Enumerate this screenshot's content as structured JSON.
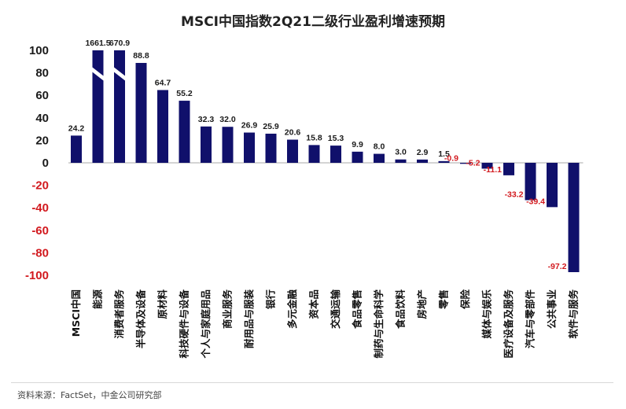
{
  "chart_data": {
    "type": "bar",
    "title": "MSCI中国指数2Q21二级行业盈利增速预期",
    "categories": [
      "MSCI中国",
      "能源",
      "消费者服务",
      "半导体及设备",
      "原材料",
      "科技硬件与设备",
      "个人与家庭用品",
      "商业服务",
      "耐用品与服装",
      "银行",
      "多元金融",
      "资本品",
      "交通运输",
      "食品零售",
      "制药与生命科学",
      "食品饮料",
      "房地产",
      "零售",
      "保险",
      "媒体与娱乐",
      "医疗设备及服务",
      "汽车与零部件",
      "公共事业",
      "软件与服务"
    ],
    "values": [
      24.2,
      1661.5,
      670.9,
      88.8,
      64.7,
      55.2,
      32.3,
      32.0,
      26.9,
      25.9,
      20.6,
      15.8,
      15.3,
      9.9,
      8.0,
      3.0,
      2.9,
      1.5,
      -0.9,
      -5.2,
      -11.1,
      -33.2,
      -39.4,
      -97.2
    ],
    "value_labels": [
      "24.2",
      "1661.5",
      "670.9",
      "88.8",
      "64.7",
      "55.2",
      "32.3",
      "32.0",
      "26.9",
      "25.9",
      "20.6",
      "15.8",
      "15.3",
      "9.9",
      "8.0",
      "3.0",
      "2.9",
      "1.5",
      "-0.9",
      "-5.2",
      "-11.1",
      "-33.2",
      "-39.4",
      "-97.2"
    ],
    "ylim": [
      -100,
      100
    ],
    "yticks": [
      100,
      80,
      60,
      40,
      20,
      0,
      -20,
      -40,
      -60,
      -80,
      -100
    ],
    "axis_break": true,
    "colors": {
      "bar": "#10106b",
      "positive_label": "#1a1a1a",
      "negative_label": "#d2191e",
      "negative_tick": "#d2191e",
      "positive_tick": "#1a1a1a"
    },
    "grid": false,
    "legend": "none"
  },
  "source": "资料来源：FactSet，中金公司研究部"
}
